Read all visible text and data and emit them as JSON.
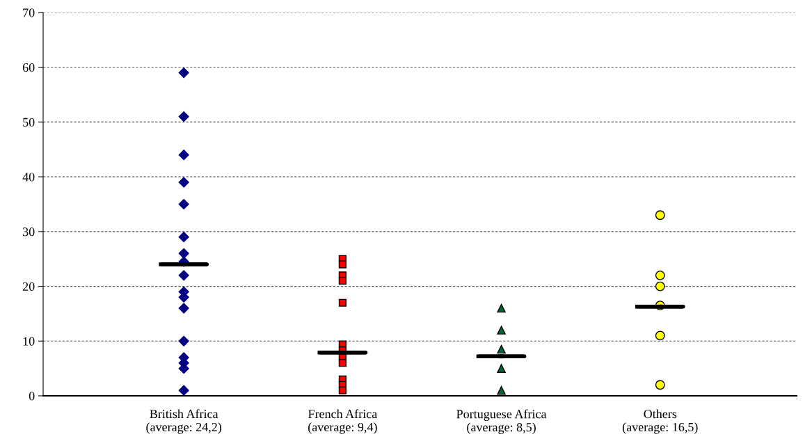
{
  "chart_data": {
    "type": "scatter",
    "categories": [
      "British Africa\n(average: 24,2)",
      "French Africa\n(average: 9,4)",
      "Portuguese Africa\n(average: 8,5)",
      "Others\n(average: 16,5)"
    ],
    "ylim": [
      0,
      70
    ],
    "yticks": [
      0,
      10,
      20,
      30,
      40,
      50,
      60,
      70
    ],
    "grid": "y",
    "legend": false,
    "series": [
      {
        "color": "#000080",
        "marker": "diamond",
        "x": [
          "British Africa\n(average: 24,2)",
          "British Africa\n(average: 24,2)",
          "British Africa\n(average: 24,2)",
          "British Africa\n(average: 24,2)",
          "British Africa\n(average: 24,2)",
          "British Africa\n(average: 24,2)",
          "British Africa\n(average: 24,2)",
          "British Africa\n(average: 24,2)",
          "British Africa\n(average: 24,2)",
          "British Africa\n(average: 24,2)",
          "British Africa\n(average: 24,2)",
          "British Africa\n(average: 24,2)",
          "British Africa\n(average: 24,2)",
          "British Africa\n(average: 24,2)",
          "British Africa\n(average: 24,2)",
          "British Africa\n(average: 24,2)",
          "British Africa\n(average: 24,2)"
        ],
        "values": [
          59,
          51,
          44,
          39,
          35,
          29,
          26,
          24.5,
          22,
          19,
          18,
          16,
          10,
          7,
          6,
          5,
          1
        ]
      },
      {
        "color": "#ff0000",
        "marker": "square",
        "x": [
          "French Africa\n(average: 9,4)",
          "French Africa\n(average: 9,4)",
          "French Africa\n(average: 9,4)",
          "French Africa\n(average: 9,4)",
          "French Africa\n(average: 9,4)",
          "French Africa\n(average: 9,4)",
          "French Africa\n(average: 9,4)",
          "French Africa\n(average: 9,4)",
          "French Africa\n(average: 9,4)",
          "French Africa\n(average: 9,4)",
          "French Africa\n(average: 9,4)",
          "French Africa\n(average: 9,4)"
        ],
        "values": [
          25,
          24,
          22,
          21,
          17,
          9.4,
          8.3,
          7,
          6,
          3,
          2,
          1
        ]
      },
      {
        "color": "#006633",
        "marker": "triangle",
        "x": [
          "Portuguese Africa\n(average: 8,5)",
          "Portuguese Africa\n(average: 8,5)",
          "Portuguese Africa\n(average: 8,5)",
          "Portuguese Africa\n(average: 8,5)",
          "Portuguese Africa\n(average: 8,5)"
        ],
        "values": [
          16,
          12,
          8.5,
          5,
          1
        ]
      },
      {
        "color": "#ffff00",
        "marker": "circle",
        "x": [
          "Others\n(average: 16,5)",
          "Others\n(average: 16,5)",
          "Others\n(average: 16,5)",
          "Others\n(average: 16,5)",
          "Others\n(average: 16,5)",
          "Others\n(average: 16,5)"
        ],
        "values": [
          33,
          22,
          20,
          16.5,
          11,
          2
        ]
      },
      {
        "type": "box",
        "color": "#000000",
        "boxes": [
          {
            "low": 24,
            "q1": 24,
            "median": 24,
            "q3": 24,
            "high": 24
          },
          {
            "low": 7.9,
            "q1": 7.9,
            "median": 7.9,
            "q3": 7.9,
            "high": 7.9
          },
          {
            "low": 7.2,
            "q1": 7.2,
            "median": 7.2,
            "q3": 7.2,
            "high": 7.2
          },
          {
            "low": 16.3,
            "q1": 16.3,
            "median": 16.3,
            "q3": 16.3,
            "high": 16.3
          }
        ]
      }
    ]
  }
}
